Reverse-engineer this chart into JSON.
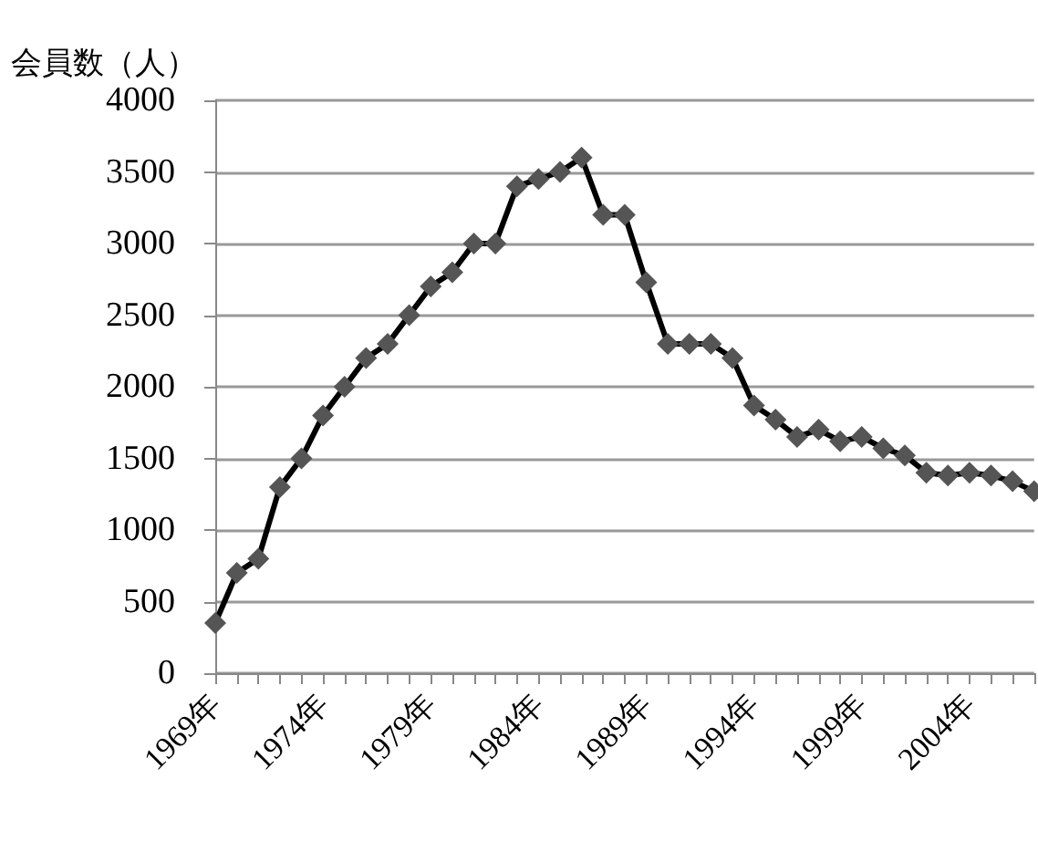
{
  "chart_data": {
    "type": "line",
    "ylabel": "会員数（人）",
    "categories": [
      "1969年",
      null,
      null,
      null,
      null,
      "1974年",
      null,
      null,
      null,
      null,
      "1979年",
      null,
      null,
      null,
      null,
      "1984年",
      null,
      null,
      null,
      null,
      "1989年",
      null,
      null,
      null,
      null,
      "1994年",
      null,
      null,
      null,
      null,
      "1999年",
      null,
      null,
      null,
      null,
      "2004年",
      null,
      null,
      null
    ],
    "series": [
      {
        "color": "#555555",
        "values": [
          350,
          700,
          800,
          1300,
          1500,
          1800,
          2000,
          2200,
          2300,
          2500,
          2700,
          2800,
          3000,
          3000,
          3400,
          3450,
          3500,
          3600,
          3200,
          3200,
          2730,
          2300,
          2300,
          2300,
          2200,
          1870,
          1770,
          1650,
          1700,
          1620,
          1650,
          1570,
          1520,
          1400,
          1380,
          1400,
          1380,
          1340,
          1270
        ]
      }
    ],
    "ylim": [
      0,
      4000
    ],
    "yticks": [
      0,
      500,
      1000,
      1500,
      2000,
      2500,
      3000,
      3500,
      4000
    ],
    "grid": "y",
    "marker": "diamond",
    "line_style": "solid"
  }
}
